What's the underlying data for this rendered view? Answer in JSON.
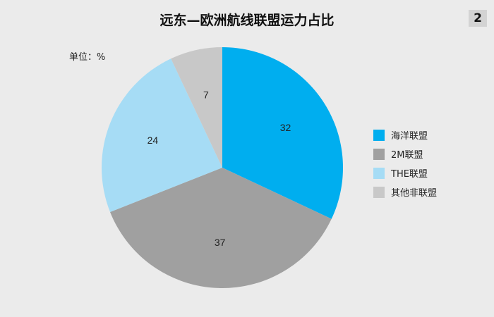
{
  "page_badge": "2",
  "chart_data": {
    "type": "pie",
    "title": "远东—欧洲航线联盟运力占比",
    "unit_label": "单位：%",
    "start_angle_deg": 0,
    "direction": "clockwise",
    "slices": [
      {
        "label": "海洋联盟",
        "value": 32,
        "color": "#00aeef"
      },
      {
        "label": "2M联盟",
        "value": 37,
        "color": "#a0a0a0"
      },
      {
        "label": "THE联盟",
        "value": 24,
        "color": "#a6dcf5"
      },
      {
        "label": "其他非联盟",
        "value": 7,
        "color": "#c8c8c8"
      }
    ],
    "legend_position": "right"
  }
}
